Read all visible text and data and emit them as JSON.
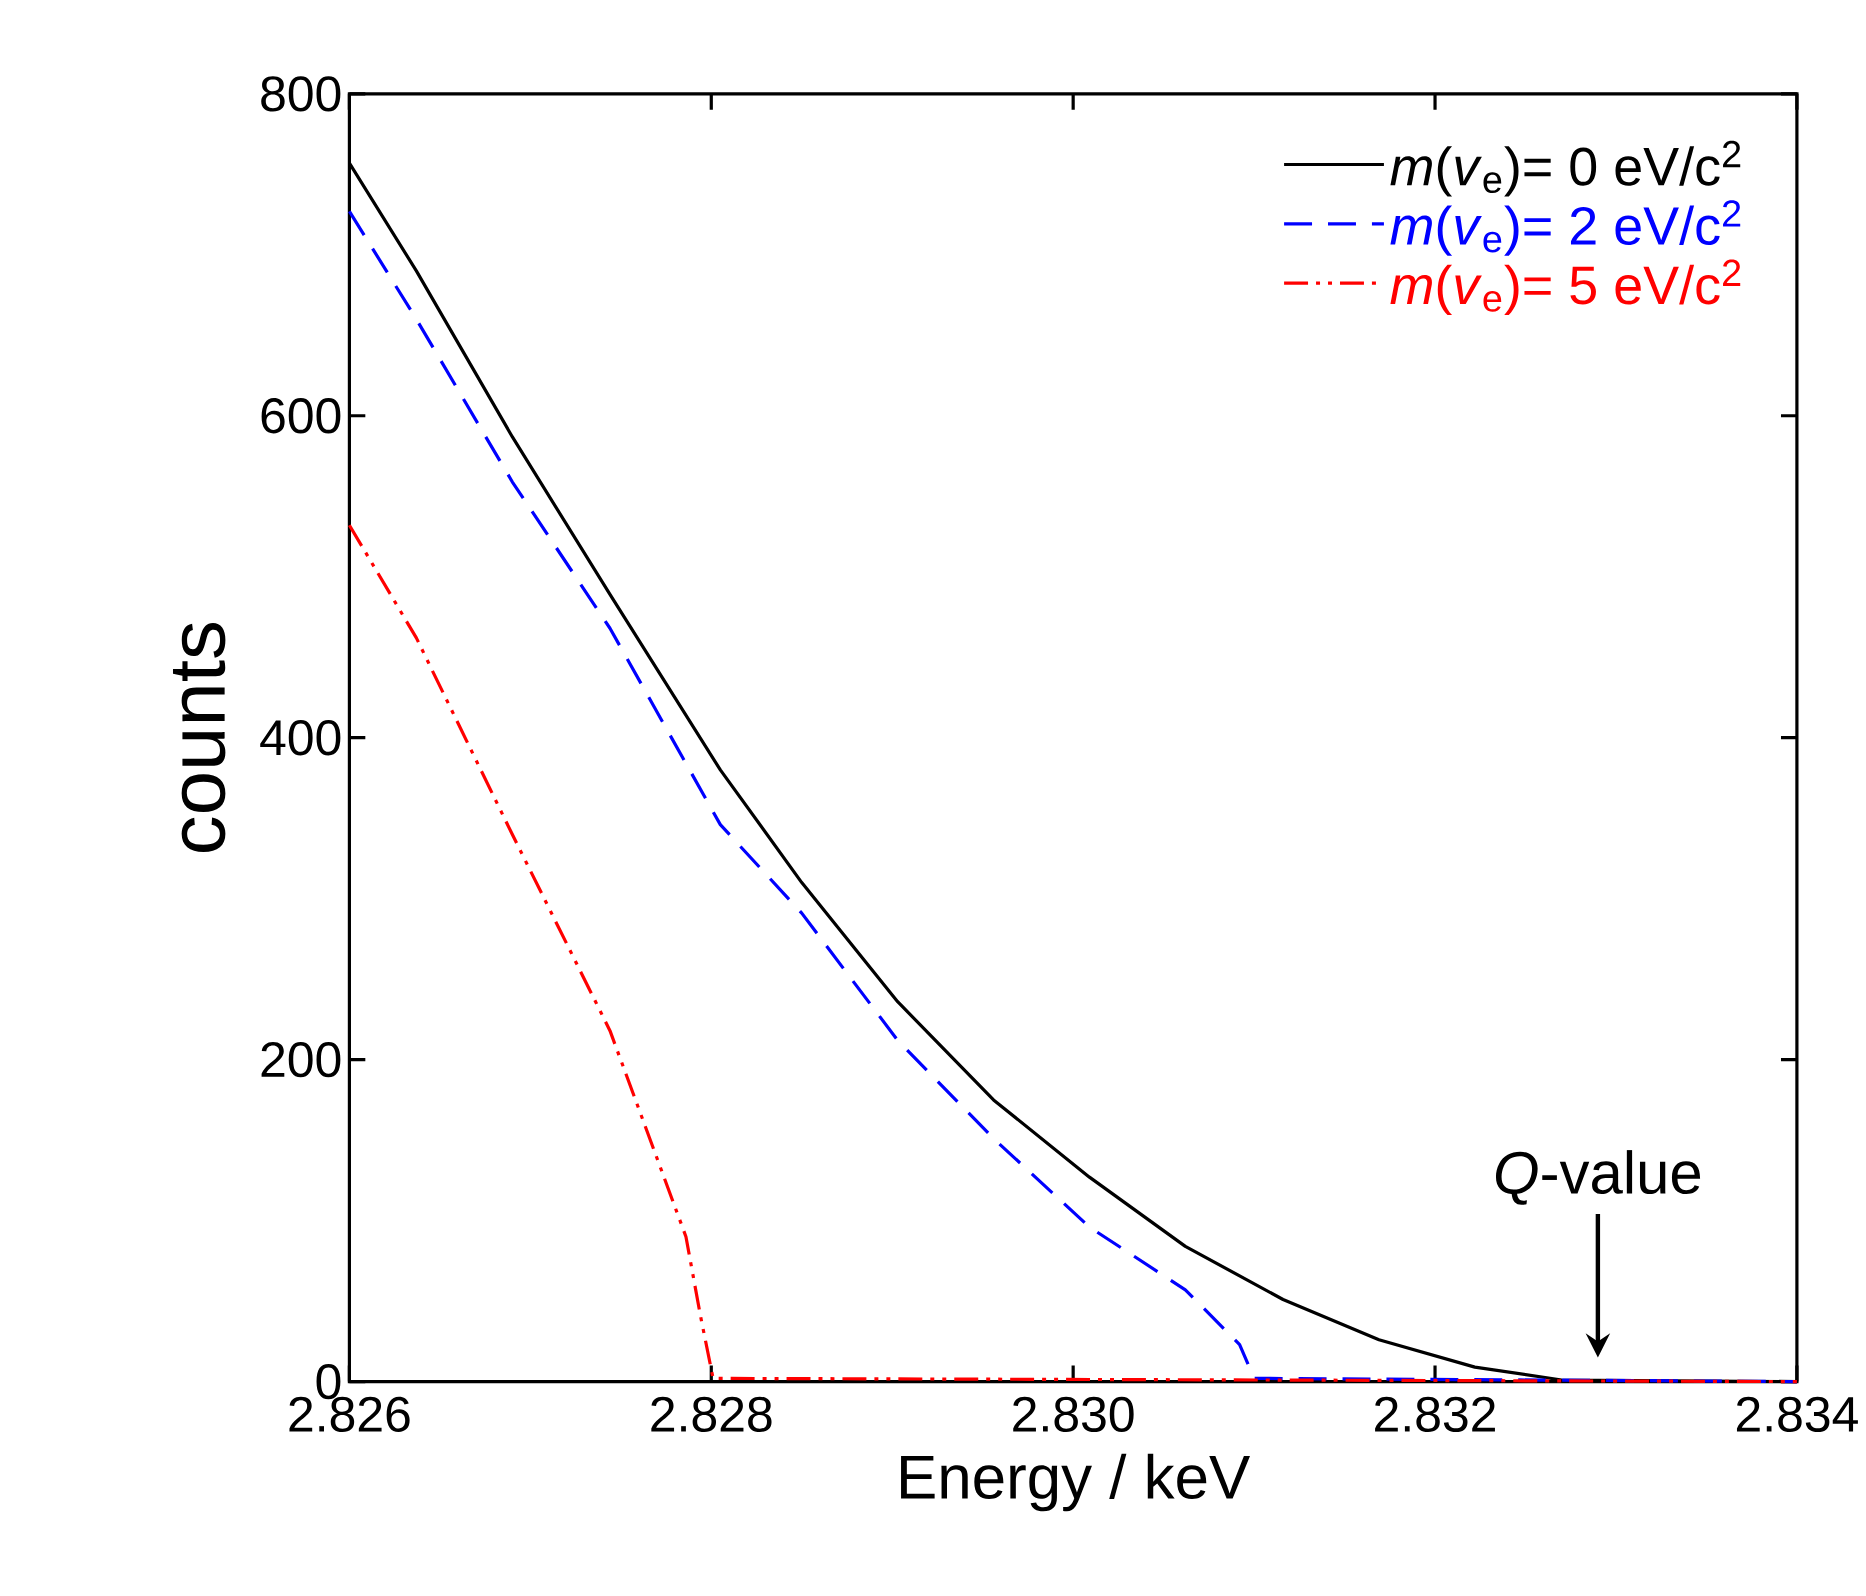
{
  "chart_data": {
    "type": "line",
    "xlabel": "Energy / keV",
    "ylabel": "counts",
    "xlim": [
      2.826,
      2.834
    ],
    "ylim": [
      0,
      800
    ],
    "xticks": [
      2.826,
      2.828,
      {
        "value": 2.83,
        "label": "2.830"
      },
      2.832,
      2.834
    ],
    "yticks": [
      0,
      200,
      400,
      600,
      800
    ],
    "legend": "top right",
    "grid": false,
    "annotations": [
      {
        "text": "*Q*-value",
        "x": 2.8329,
        "y": 0
      }
    ],
    "series": [
      {
        "name": "*m*(*v*$_{e}$)= 0 eV/c$^{2}$",
        "color": "#000000",
        "line_style": "solid",
        "x": [
          2.826,
          2.82637,
          2.8269,
          2.82744,
          2.82805,
          2.8285,
          2.82903,
          2.82956,
          2.83009,
          2.83062,
          2.83116,
          2.83169,
          2.83222,
          2.8327,
          2.834
        ],
        "values": [
          757,
          690,
          587,
          489,
          380,
          310,
          236,
          175,
          127,
          84,
          51,
          26,
          9,
          1,
          0
        ]
      },
      {
        "name": "*m*(*v*$_{e}$)= 2 eV/c$^{2}$",
        "color": "#0000ff",
        "line_style": "dashed",
        "x": [
          2.826,
          2.82637,
          2.8269,
          2.82744,
          2.82805,
          2.8285,
          2.82903,
          2.82956,
          2.83009,
          2.83062,
          2.83092,
          2.831,
          2.834
        ],
        "values": [
          727,
          660,
          559,
          468,
          346,
          291,
          212,
          151,
          96,
          57,
          23,
          2,
          0
        ]
      },
      {
        "name": "*m*(*v*$_{e}$)= 5 eV/c$^{2}$",
        "color": "#ff0000",
        "line_style": "dotted",
        "x": [
          2.826,
          2.82637,
          2.8269,
          2.82744,
          2.82786,
          2.82794,
          2.82801,
          2.834
        ],
        "values": [
          532,
          462,
          340,
          218,
          90,
          41,
          2,
          0
        ]
      }
    ]
  }
}
